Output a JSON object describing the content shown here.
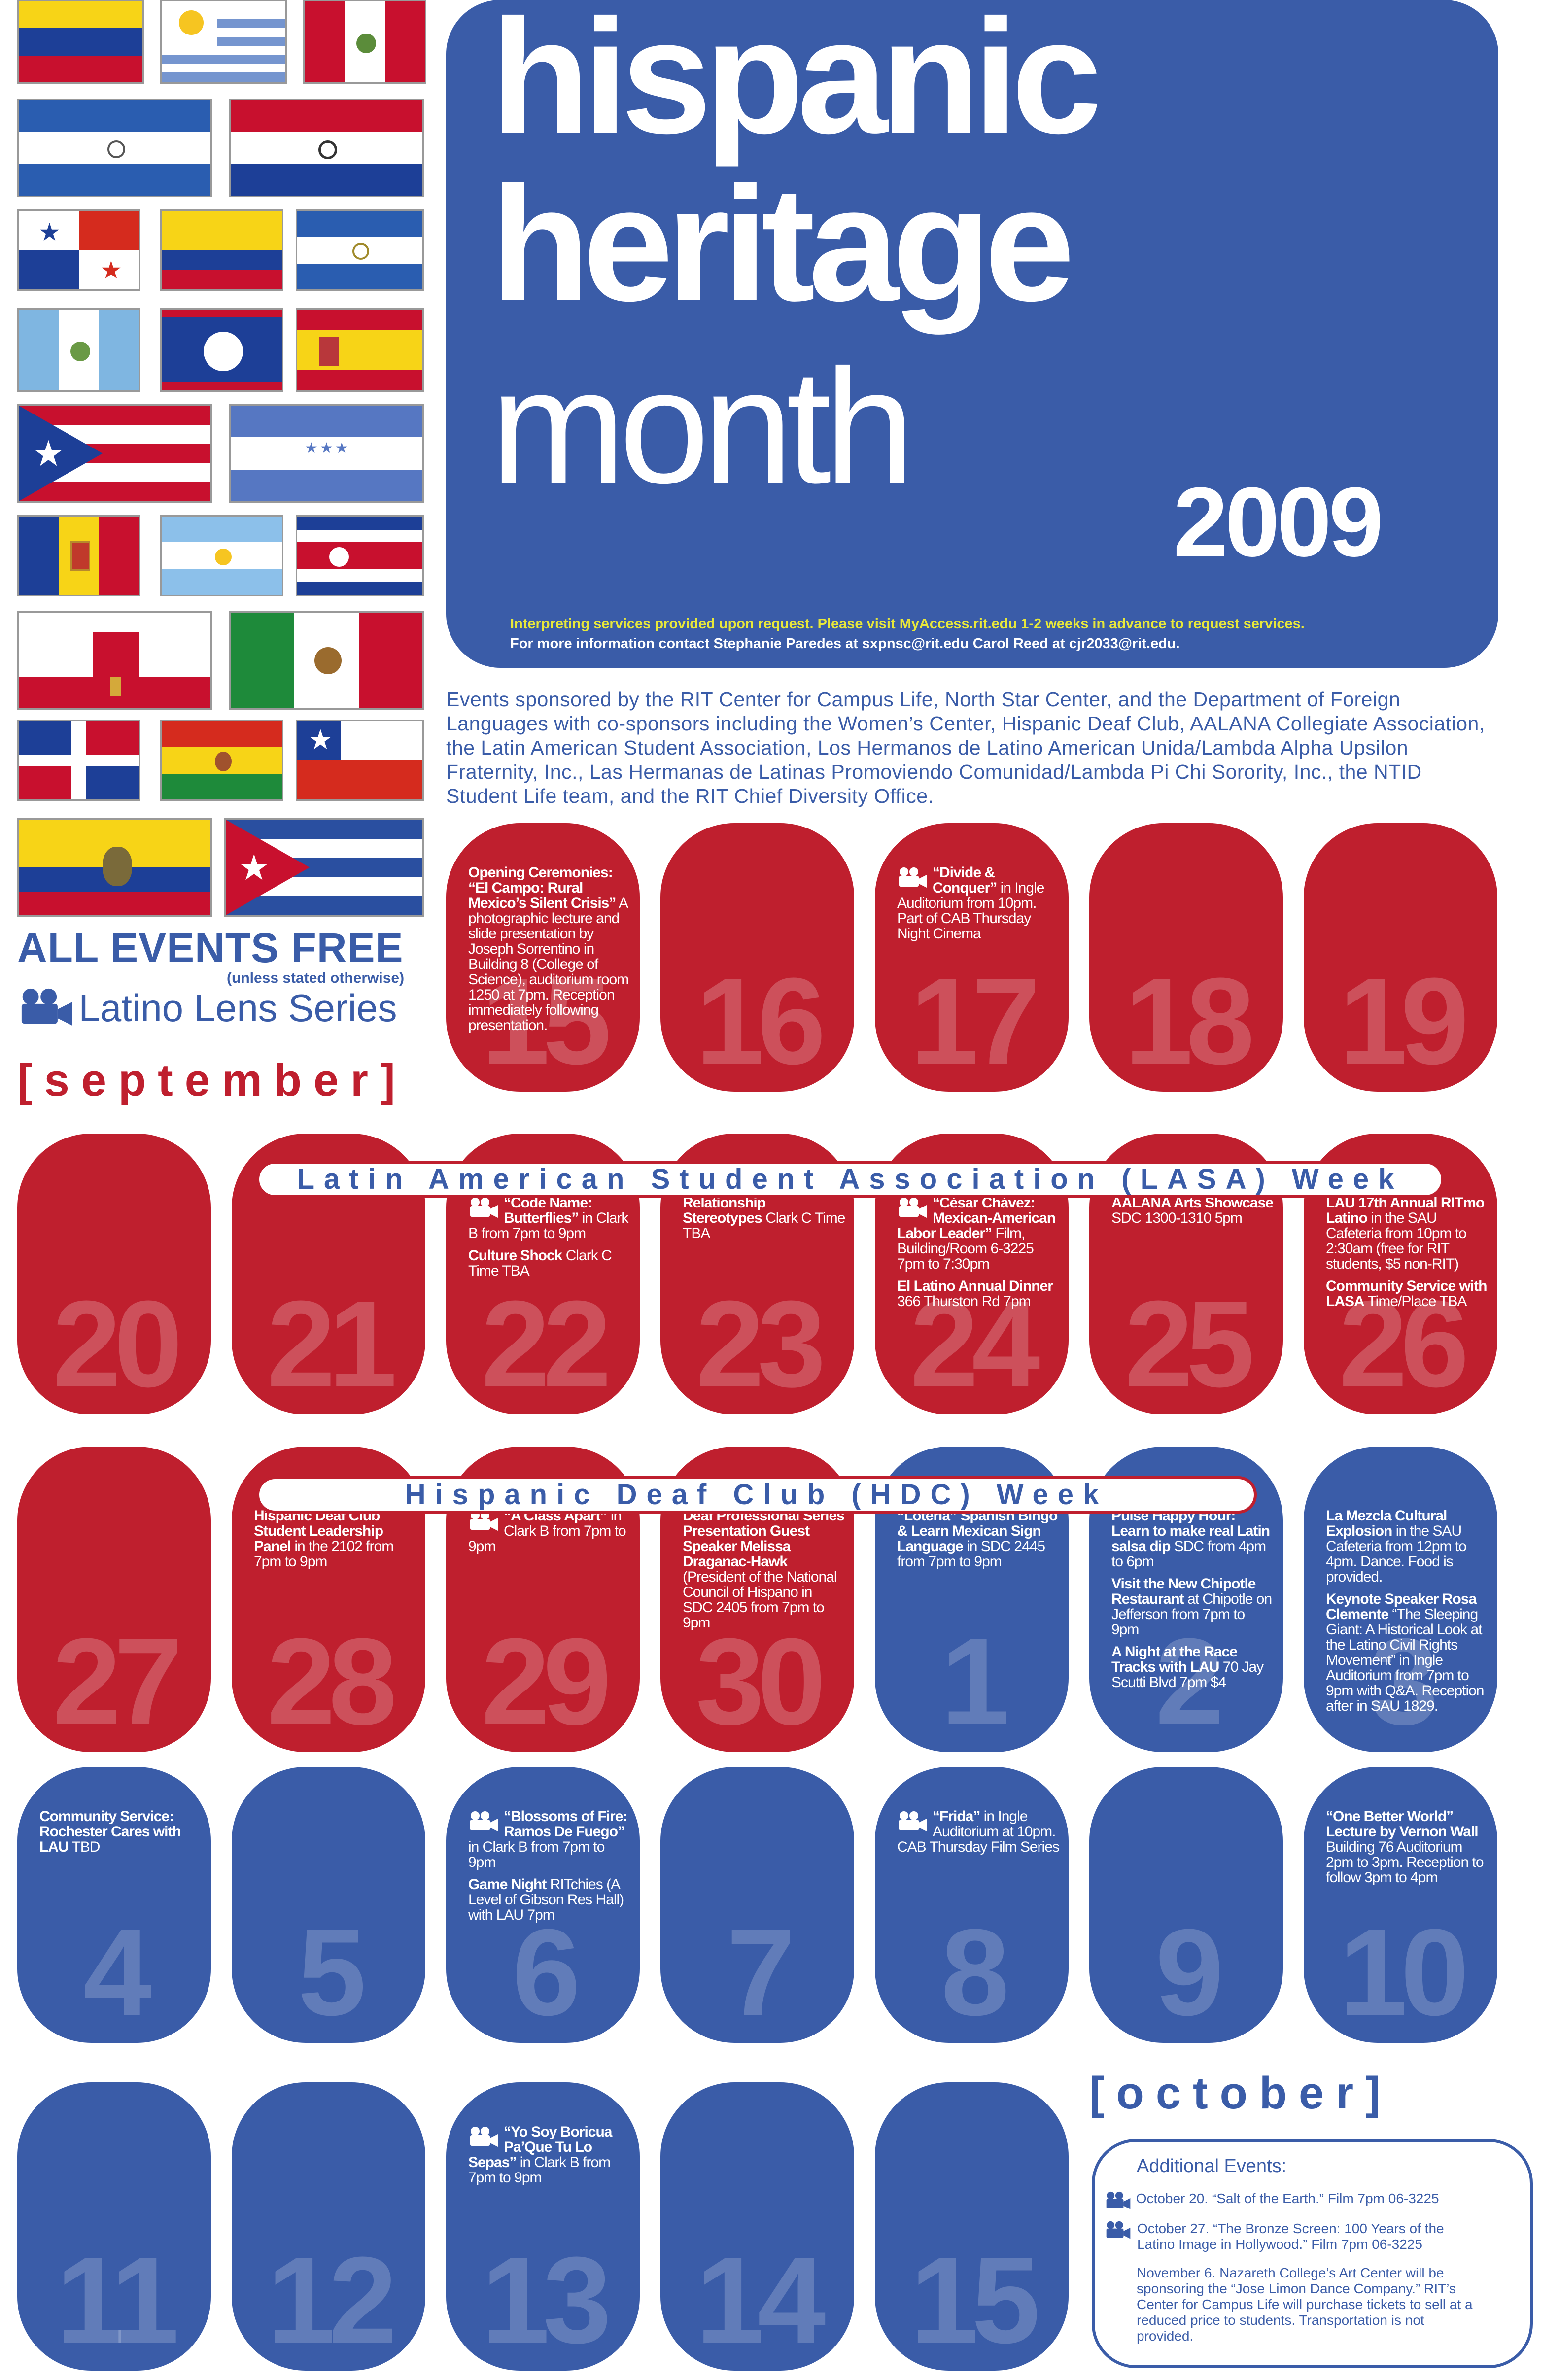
{
  "header": {
    "line1": "hispanic",
    "line2": "heritage",
    "line3": "month",
    "year": "2009",
    "note1": "Interpreting services provided upon request. Please visit MyAccess.rit.edu 1-2 weeks in advance to request services.",
    "note2": "For more information contact Stephanie Paredes at sxpnsc@rit.edu Carol Reed at cjr2033@rit.edu."
  },
  "sponsors": "Events sponsored by the RIT Center for Campus Life, North Star Center, and the Department of Foreign Languages with co-sponsors including the Women’s Center, Hispanic Deaf Club, AALANA Collegiate Association, the Latin American Student Association, Los Hermanos de Latino American Unida/Lambda Alpha Upsilon Fraternity, Inc., Las Hermanas de Latinas Promoviendo Comunidad/Lambda Pi Chi Sorority, Inc., the NTID Student Life team, and the RIT Chief Diversity Office.",
  "left": {
    "free": "ALL EVENTS FREE",
    "free_note": "(unless stated otherwise)",
    "lens": "Latino Lens Series",
    "september": "[september]",
    "october": "[october]"
  },
  "colors": {
    "red": "#bf1f2e",
    "blue": "#3a5ca8",
    "white": "#ffffff"
  },
  "banners": {
    "lasa": "Latin American Student Association (LASA) Week",
    "hdc": "Hispanic Deaf Club (HDC) Week"
  },
  "days": [
    {
      "n": "15",
      "events": [
        {
          "title": "Opening Ceremonies: “El Campo: Rural Mexico’s Silent Crisis”",
          "text": " A photographic lecture and slide presentation by Joseph Sorrentino in Building 8 (College of Science), auditorium room 1250 at 7pm. Reception immediately following presentation."
        }
      ]
    },
    {
      "n": "16",
      "events": []
    },
    {
      "n": "17",
      "events": [
        {
          "title": "“Divide & Conquer”",
          "text": " in Ingle Auditorium from 10pm. Part of CAB Thursday Night Cinema"
        }
      ]
    },
    {
      "n": "18",
      "events": []
    },
    {
      "n": "19",
      "events": []
    },
    {
      "n": "20",
      "events": []
    },
    {
      "n": "21",
      "events": []
    },
    {
      "n": "22",
      "events": [
        {
          "title": "“Code Name: Butterflies”",
          "text": " in Clark B from 7pm to 9pm"
        },
        {
          "title": "Culture Shock",
          "text": " Clark C Time TBA"
        }
      ]
    },
    {
      "n": "23",
      "events": [
        {
          "title": "Relationship Stereotypes",
          "text": " Clark C Time TBA"
        }
      ]
    },
    {
      "n": "24",
      "events": [
        {
          "title": "“César Chávez: Mexican-American Labor Leader”",
          "text": " Film, Building/Room 6-3225 7pm to 7:30pm"
        },
        {
          "title": "El Latino Annual Dinner",
          "text": " 366 Thurston Rd 7pm"
        }
      ]
    },
    {
      "n": "25",
      "events": [
        {
          "title": "AALANA Arts Showcase",
          "text": " SDC 1300-1310 5pm"
        }
      ]
    },
    {
      "n": "26",
      "events": [
        {
          "title": "LAU 17th Annual RITmo Latino",
          "text": " in the SAU Cafeteria from 10pm to 2:30am (free for RIT students, $5 non-RIT)"
        },
        {
          "title": "Community Service with LASA",
          "text": " Time/Place TBA"
        }
      ]
    },
    {
      "n": "27",
      "events": []
    },
    {
      "n": "28",
      "events": [
        {
          "title": "Hispanic Deaf Club Student Leadership Panel",
          "text": " in the 2102 from 7pm to 9pm"
        }
      ]
    },
    {
      "n": "29",
      "events": [
        {
          "title": "“A Class Apart”",
          "text": " in Clark B from 7pm to 9pm"
        }
      ]
    },
    {
      "n": "30",
      "events": [
        {
          "title": "Deaf Professional Series Presentation Guest Speaker Melissa Draganac-Hawk",
          "text": " (President of the National Council of Hispano in SDC 2405 from 7pm to 9pm"
        }
      ]
    },
    {
      "n": "1",
      "events": [
        {
          "title": "“Loteria” Spanish Bingo & Learn Mexican Sign Language",
          "text": " in SDC 2445 from 7pm to 9pm"
        }
      ]
    },
    {
      "n": "2",
      "events": [
        {
          "title": "Pulse Happy Hour: Learn to make real Latin salsa dip",
          "text": " SDC from 4pm to 6pm"
        },
        {
          "title": "Visit the New Chipotle Restaurant",
          "text": " at Chipotle on Jefferson from 7pm to 9pm"
        },
        {
          "title": "A Night at the Race Tracks with LAU",
          "text": " 70 Jay Scutti Blvd 7pm $4"
        }
      ]
    },
    {
      "n": "3",
      "events": [
        {
          "title": "La Mezcla Cultural Explosion",
          "text": " in the SAU Cafeteria from 12pm to 4pm. Dance. Food is provided."
        },
        {
          "title": "Keynote Speaker Rosa Clemente",
          "text": " “The Sleeping Giant: A Historical Look at the Latino Civil Rights Movement” in Ingle Auditorium from 7pm to 9pm with Q&A. Reception after in SAU 1829."
        }
      ]
    },
    {
      "n": "4",
      "events": [
        {
          "title": "Community Service: Rochester Cares with LAU",
          "text": " TBD"
        }
      ]
    },
    {
      "n": "5",
      "events": []
    },
    {
      "n": "6",
      "events": [
        {
          "title": "“Blossoms of Fire: Ramos De Fuego”",
          "text": " in Clark B from 7pm to 9pm"
        },
        {
          "title": "Game Night",
          "text": " RITchies (A Level of Gibson Res Hall) with LAU 7pm"
        }
      ]
    },
    {
      "n": "7",
      "events": []
    },
    {
      "n": "8",
      "events": [
        {
          "title": "“Frida”",
          "text": " in Ingle Auditorium at 10pm. CAB Thursday Film Series"
        }
      ]
    },
    {
      "n": "9",
      "events": []
    },
    {
      "n": "10",
      "events": [
        {
          "title": "“One Better World” Lecture by Vernon Wall",
          "text": " Building 76 Auditorium 2pm to 3pm. Reception to follow 3pm to 4pm"
        }
      ]
    },
    {
      "n": "11",
      "events": []
    },
    {
      "n": "12",
      "events": []
    },
    {
      "n": "13",
      "events": [
        {
          "title": "“Yo Soy Boricua Pa’Que Tu Lo Sepas”",
          "text": " in Clark B from 7pm to 9pm"
        }
      ]
    },
    {
      "n": "14",
      "events": []
    },
    {
      "n": "15",
      "events": []
    }
  ],
  "additional": {
    "title": "Additional Events:",
    "items": [
      "October 20. “Salt of the Earth.” Film 7pm 06-3225",
      "October 27. “The Bronze Screen: 100 Years of the Latino Image in Hollywood.” Film 7pm 06-3225",
      "November 6. Nazareth College’s Art Center will be sponsoring the “Jose Limon Dance Company.” RIT’s Center for Campus Life will purchase tickets to sell at a reduced price to students. Transportation is not provided."
    ]
  }
}
